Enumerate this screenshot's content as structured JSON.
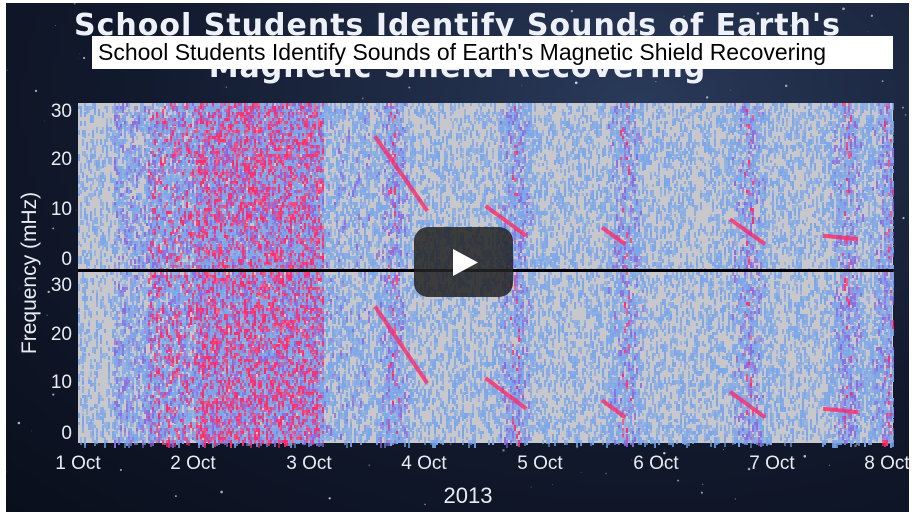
{
  "video": {
    "overlay_title": "School Students Identify Sounds of Earth's Magnetic Shield Recovering",
    "thumbnail_title": "School Students Identify Sounds of Earth's Magnetic Shield Recovering",
    "play_icon": "play-icon"
  },
  "chart_data": {
    "type": "heatmap",
    "ylabel": "Frequency (mHz)",
    "xlabel": "2013",
    "panels": [
      {
        "name": "top",
        "ylim": [
          0,
          30
        ],
        "yticks": [
          "30",
          "20",
          "10",
          "0"
        ]
      },
      {
        "name": "bottom",
        "ylim": [
          0,
          30
        ],
        "yticks": [
          "30",
          "20",
          "10",
          "0"
        ]
      }
    ],
    "xticks": [
      "1 Oct",
      "2 Oct",
      "3 Oct",
      "4 Oct",
      "5 Oct",
      "6 Oct",
      "7 Oct",
      "8 Oct"
    ],
    "colors": {
      "background": "#c8c8cc",
      "low": "#7aa6ea",
      "mid": "#8a6ae0",
      "high": "#ff2a6a",
      "divider": "#000000"
    }
  }
}
